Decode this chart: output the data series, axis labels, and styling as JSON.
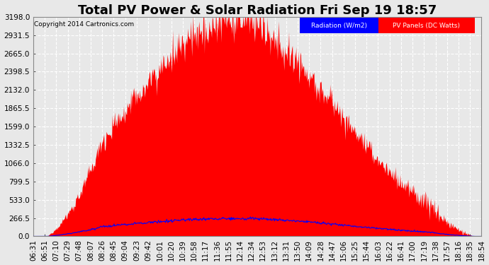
{
  "title": "Total PV Power & Solar Radiation Fri Sep 19 18:57",
  "copyright": "Copyright 2014 Cartronics.com",
  "y_ticks": [
    0.0,
    266.5,
    533.0,
    799.5,
    1066.0,
    1332.5,
    1599.0,
    1865.5,
    2132.0,
    2398.5,
    2665.0,
    2931.5,
    3198.0
  ],
  "y_max": 3198.0,
  "x_labels": [
    "06:31",
    "06:51",
    "07:10",
    "07:29",
    "07:48",
    "08:07",
    "08:26",
    "08:45",
    "09:04",
    "09:23",
    "09:42",
    "10:01",
    "10:20",
    "10:39",
    "10:58",
    "11:17",
    "11:36",
    "11:55",
    "12:14",
    "12:34",
    "12:53",
    "13:12",
    "13:31",
    "13:50",
    "14:09",
    "14:28",
    "14:47",
    "15:06",
    "15:25",
    "15:44",
    "16:03",
    "16:22",
    "16:41",
    "17:00",
    "17:19",
    "17:38",
    "17:57",
    "18:16",
    "18:35",
    "18:54"
  ],
  "bg_color": "#e8e8e8",
  "plot_bg_color": "#e8e8e8",
  "grid_color": "#ffffff",
  "pv_color": "#ff0000",
  "radiation_color": "#0000ff",
  "legend_radiation_bg": "#0000ff",
  "legend_pv_bg": "#ff0000",
  "title_fontsize": 13,
  "axis_fontsize": 7.5,
  "copyright_fontsize": 6.5
}
